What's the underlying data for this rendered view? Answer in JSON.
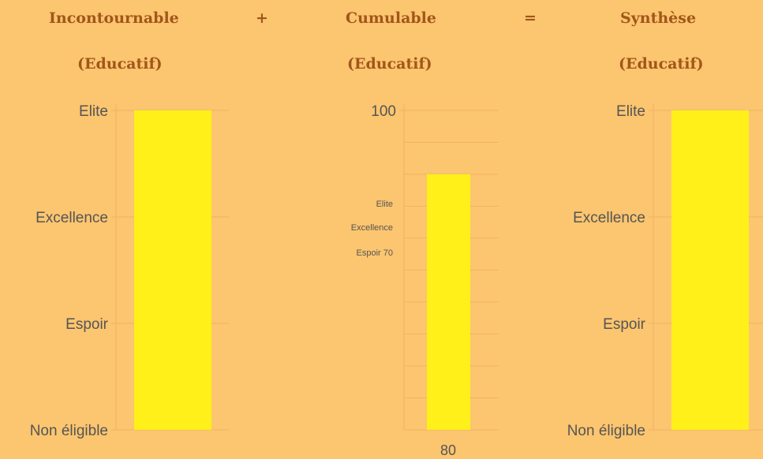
{
  "header": {
    "col1_title": "Incontournable",
    "col1_sub": "(Educatif)",
    "plus": "+",
    "col2_title": "Cumulable",
    "col2_sub": "(Educatif)",
    "equals": "=",
    "col3_title": "Synthèse",
    "col3_sub": "(Educatif)"
  },
  "colors": {
    "background": "#fcc56f",
    "bar": "#fff01a",
    "header_text": "#a1561a",
    "grid": "#eeb464",
    "tick_text": "#555555"
  },
  "chart_data": [
    {
      "type": "bar",
      "categories": [
        ""
      ],
      "y_categories": [
        "Non éligible",
        "Espoir",
        "Excellence",
        "Elite"
      ],
      "values": [
        "Elite"
      ],
      "grid": true
    },
    {
      "type": "bar",
      "categories": [
        "80"
      ],
      "values": [
        80
      ],
      "ylim": [
        0,
        100
      ],
      "yticks": [
        100
      ],
      "grid": true,
      "annotations": [
        "Elite",
        "Excellence",
        "Espoir 70"
      ]
    },
    {
      "type": "bar",
      "categories": [
        ""
      ],
      "y_categories": [
        "Non éligible",
        "Espoir",
        "Excellence",
        "Elite"
      ],
      "values": [
        "Elite"
      ],
      "grid": true
    }
  ]
}
